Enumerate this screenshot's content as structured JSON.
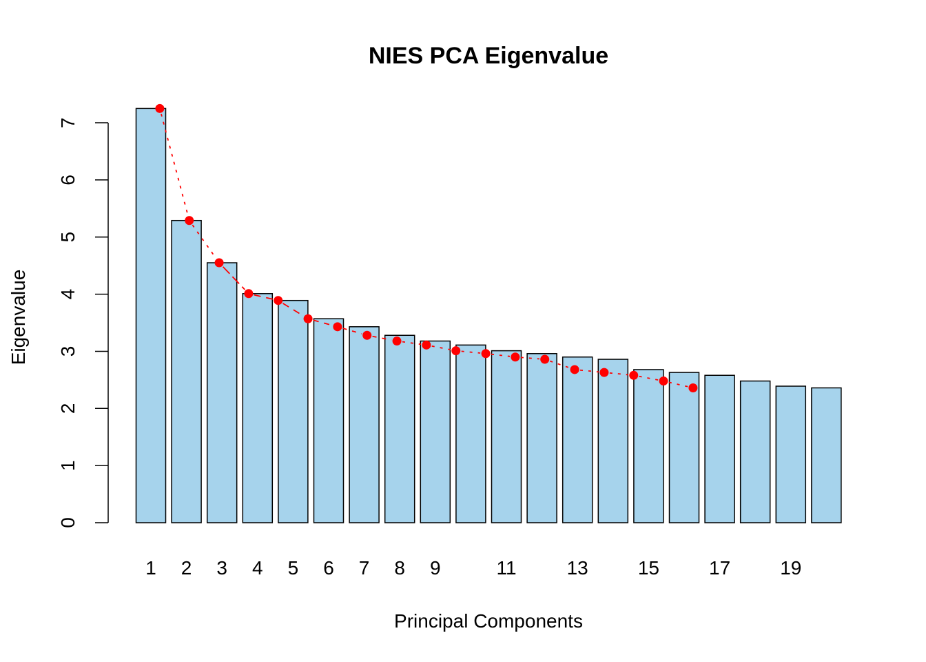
{
  "chart_data": {
    "type": "bar",
    "title": "NIES PCA Eigenvalue",
    "xlabel": "Principal Components",
    "ylabel": "Eigenvalue",
    "ylim": [
      0,
      7.25
    ],
    "yticks": [
      0,
      1,
      2,
      3,
      4,
      5,
      6,
      7
    ],
    "categories": [
      "1",
      "2",
      "3",
      "4",
      "5",
      "6",
      "7",
      "8",
      "9",
      "10",
      "11",
      "12",
      "13",
      "14",
      "15",
      "16",
      "17",
      "18",
      "19",
      "20"
    ],
    "shown_category_labels": [
      "1",
      "2",
      "3",
      "4",
      "5",
      "6",
      "7",
      "8",
      "9",
      "11",
      "13",
      "15",
      "17",
      "19"
    ],
    "series": [
      {
        "type": "bar",
        "color": "#a6d3ec",
        "values": [
          7.25,
          5.29,
          4.55,
          4.01,
          3.89,
          3.57,
          3.43,
          3.28,
          3.18,
          3.11,
          3.01,
          2.96,
          2.9,
          2.86,
          2.68,
          2.63,
          2.58,
          2.48,
          2.39,
          2.36
        ]
      },
      {
        "type": "line",
        "color": "#ff0000",
        "marker": "filled-circle",
        "x": [
          1.25,
          2.08,
          2.92,
          3.75,
          4.58,
          5.42,
          6.25,
          7.08,
          7.92,
          8.75,
          9.58,
          10.42,
          11.25,
          12.08,
          12.92,
          13.75,
          14.58,
          15.42,
          16.25
        ],
        "values": [
          7.25,
          5.29,
          4.55,
          4.01,
          3.89,
          3.57,
          3.43,
          3.28,
          3.18,
          3.11,
          3.01,
          2.96,
          2.9,
          2.86,
          2.68,
          2.63,
          2.58,
          2.48,
          2.36
        ]
      }
    ],
    "grid": false,
    "legend": "none"
  }
}
